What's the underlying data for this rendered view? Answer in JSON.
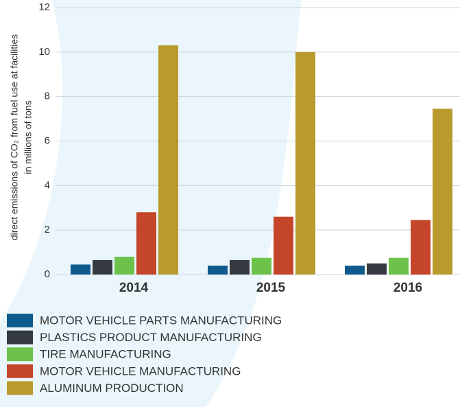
{
  "chart_data": {
    "type": "bar",
    "y_label": [
      "direct emissions of CO₂ from fuel use at facilities",
      "in millions of tons"
    ],
    "categories": [
      "2014",
      "2015",
      "2016"
    ],
    "series": [
      {
        "name": "MOTOR VEHICLE PARTS MANUFACTURING",
        "color": "#0f5a8c",
        "values": [
          0.45,
          0.4,
          0.4
        ]
      },
      {
        "name": "PLASTICS PRODUCT MANUFACTURING",
        "color": "#343a40",
        "values": [
          0.65,
          0.65,
          0.5
        ]
      },
      {
        "name": "TIRE MANUFACTURING",
        "color": "#6cc24a",
        "values": [
          0.8,
          0.75,
          0.75
        ]
      },
      {
        "name": "MOTOR VEHICLE MANUFACTURING",
        "color": "#c4452a",
        "values": [
          2.8,
          2.6,
          2.45
        ]
      },
      {
        "name": "ALUMINUM PRODUCTION",
        "color": "#b89a2e",
        "values": [
          10.3,
          10.0,
          7.45
        ]
      }
    ],
    "ylim": [
      0,
      12
    ],
    "yticks": [
      0,
      2,
      4,
      6,
      8,
      10,
      12
    ],
    "grid": true
  }
}
